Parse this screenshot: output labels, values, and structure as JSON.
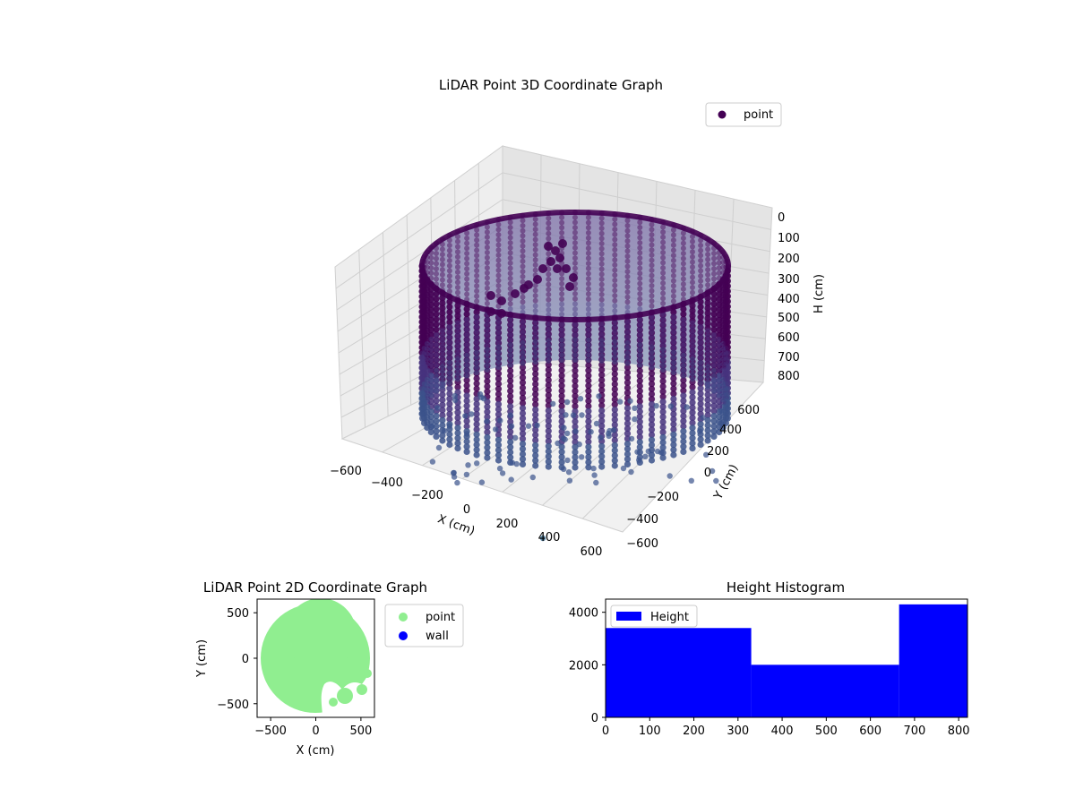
{
  "chart_data": [
    {
      "type": "scatter3d",
      "title": "LiDAR Point 3D Coordinate Graph",
      "xlabel": "X (cm)",
      "ylabel": "Y (cm)",
      "zlabel": "H (cm)",
      "xticks": [
        "−600",
        "−400",
        "−200",
        "0",
        "200",
        "400",
        "600"
      ],
      "yticks": [
        "−600",
        "−400",
        "−200",
        "0",
        "200",
        "400",
        "600"
      ],
      "zticks": [
        "0",
        "100",
        "200",
        "300",
        "400",
        "500",
        "600",
        "700",
        "800"
      ],
      "xlim": [
        -650,
        650
      ],
      "ylim": [
        -650,
        650
      ],
      "zlim": [
        0,
        820
      ],
      "zaxis_inverted": true,
      "legend": {
        "entries": [
          "point"
        ],
        "placement": "upper-right"
      },
      "colormap": "viridis",
      "colors": {
        "top": "#440154",
        "bottom": "#3b528b",
        "legend_marker": "#440154"
      },
      "structure": {
        "shape": "cylindrical wall",
        "radius_cm": 600,
        "height_range": [
          0,
          820
        ]
      }
    },
    {
      "type": "scatter",
      "title": "LiDAR Point 2D Coordinate Graph",
      "xlabel": "X (cm)",
      "ylabel": "Y (cm)",
      "xticks": [
        "−500",
        "0",
        "500"
      ],
      "yticks": [
        "−500",
        "0",
        "500"
      ],
      "xlim": [
        -650,
        650
      ],
      "ylim": [
        -650,
        650
      ],
      "legend": {
        "entries": [
          "point",
          "wall"
        ],
        "placement": "outside-right"
      },
      "series": [
        {
          "name": "point",
          "color": "#90ee90",
          "shape": "disc",
          "radius_cm": 600
        },
        {
          "name": "wall",
          "color": "#0000ff"
        }
      ]
    },
    {
      "type": "bar",
      "title": "Height Histogram",
      "xticks": [
        "0",
        "100",
        "200",
        "300",
        "400",
        "500",
        "600",
        "700",
        "800"
      ],
      "yticks": [
        "0",
        "2000",
        "4000"
      ],
      "xlim": [
        0,
        820
      ],
      "ylim": [
        0,
        4500
      ],
      "legend": {
        "entries": [
          "Height"
        ],
        "placement": "upper-left"
      },
      "color": "#0000ff",
      "bins": [
        {
          "start": 0,
          "end": 330,
          "count": 3400
        },
        {
          "start": 330,
          "end": 665,
          "count": 2000
        },
        {
          "start": 665,
          "end": 820,
          "count": 4300
        }
      ]
    }
  ]
}
